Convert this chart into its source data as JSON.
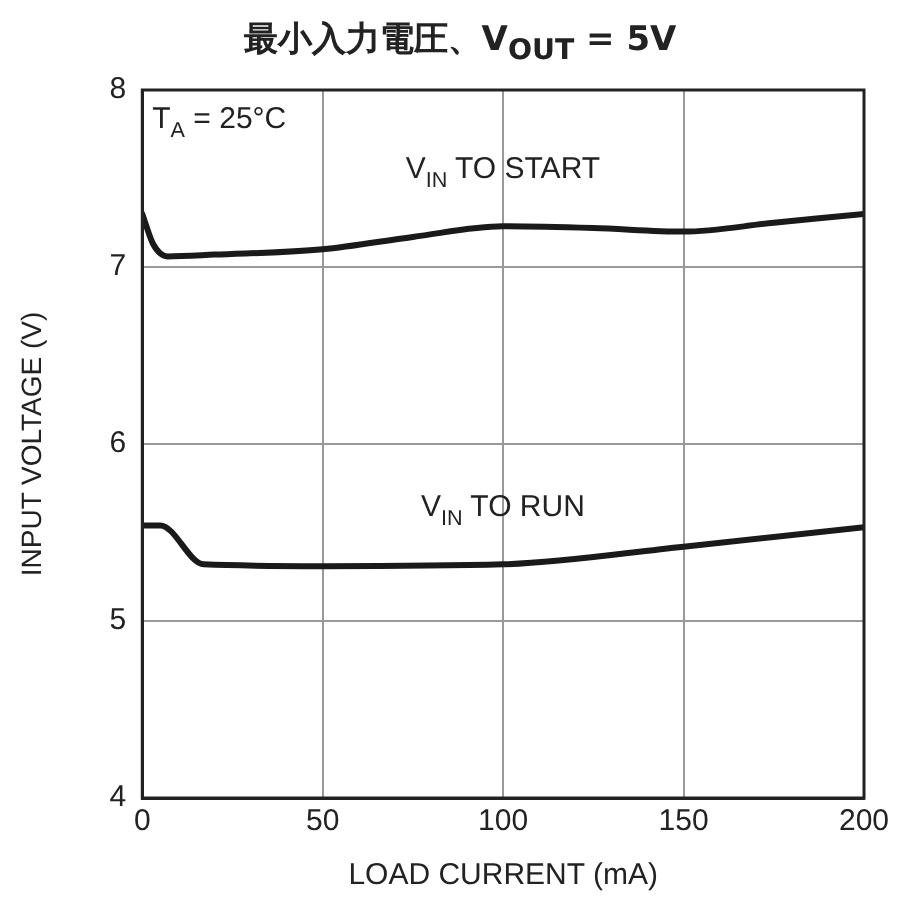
{
  "chart_data": {
    "type": "line",
    "title": "最小入力電圧、V$_{OUT}$ = 5V",
    "xlabel": "LOAD CURRENT (mA)",
    "ylabel": "INPUT VOLTAGE (V)",
    "series": [
      {
        "name": "V$_{IN}$ TO START",
        "color": "#1a1a1a",
        "x": [
          0,
          3,
          7,
          20,
          50,
          75,
          100,
          125,
          150,
          175,
          200
        ],
        "values": [
          7.3,
          7.13,
          7.06,
          7.07,
          7.1,
          7.17,
          7.23,
          7.22,
          7.2,
          7.25,
          7.3
        ]
      },
      {
        "name": "V$_{IN}$ TO RUN",
        "color": "#1a1a1a",
        "x": [
          0,
          5,
          17,
          50,
          100,
          150,
          200
        ],
        "values": [
          5.54,
          5.54,
          5.32,
          5.31,
          5.32,
          5.42,
          5.53
        ]
      }
    ],
    "annotations": [
      "T$_{A}$ = 25°C"
    ],
    "xlim": [
      0,
      200
    ],
    "xticks": [
      0,
      50,
      100,
      150,
      200
    ],
    "ylim": [
      4,
      8
    ],
    "yticks": [
      4,
      5,
      6,
      7,
      8
    ],
    "grid": true,
    "legend": false,
    "marker": "none",
    "line_style": "solid"
  }
}
